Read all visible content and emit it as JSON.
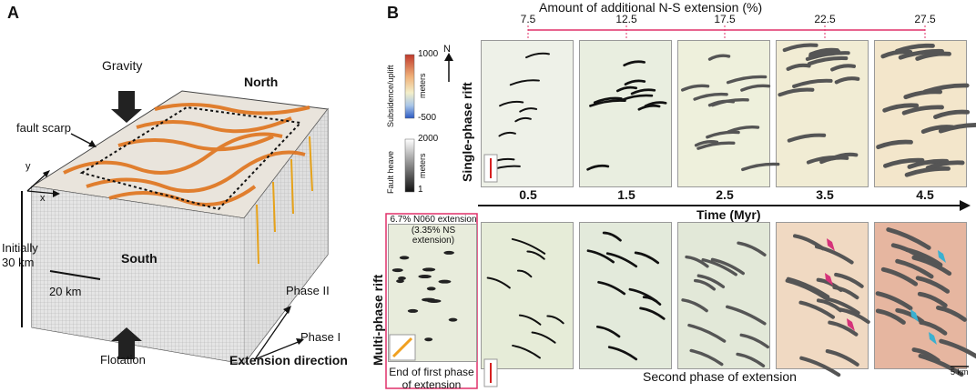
{
  "panel_a": {
    "letter": "A",
    "gravity": "Gravity",
    "north": "North",
    "south": "South",
    "fault_scarp": "fault scarp",
    "axis_y": "y",
    "axis_x": "x",
    "initially": "Initially",
    "depth": "30 km",
    "scale": "20 km",
    "phase_ii": "Phase II",
    "phase_i": "Phase I",
    "flotation": "Flotation",
    "extension_direction": "Extension direction"
  },
  "panel_b": {
    "letter": "B",
    "top_title": "Amount of additional N-S extension (%)",
    "extension_ticks": [
      "7.5",
      "12.5",
      "17.5",
      "22.5",
      "27.5"
    ],
    "north_label": "N",
    "colorbar_subsidence": {
      "title": "Subsidence/uplift",
      "max": "1000",
      "min": "-500",
      "unit": "meters",
      "color_high": "#c0392b",
      "color_mid": "#f3efc9",
      "color_low": "#2b59c3"
    },
    "colorbar_heave": {
      "title": "Fault heave",
      "max": "2000",
      "min": "1",
      "unit": "meters"
    },
    "single_phase": "Single-phase rift",
    "multi_phase": "Multi-phase rift",
    "time_ticks": [
      "0.5",
      "1.5",
      "2.5",
      "3.5",
      "4.5"
    ],
    "time_label": "Time (Myr)",
    "inset_line1": "6.7% N060 extension",
    "inset_line2": "(3.35% NS extension)",
    "end_first_1": "End of first phase",
    "end_first_2": "of extension",
    "second_phase": "Second phase of extension",
    "scale_bar": "5 km",
    "accent": "#e0306a"
  }
}
